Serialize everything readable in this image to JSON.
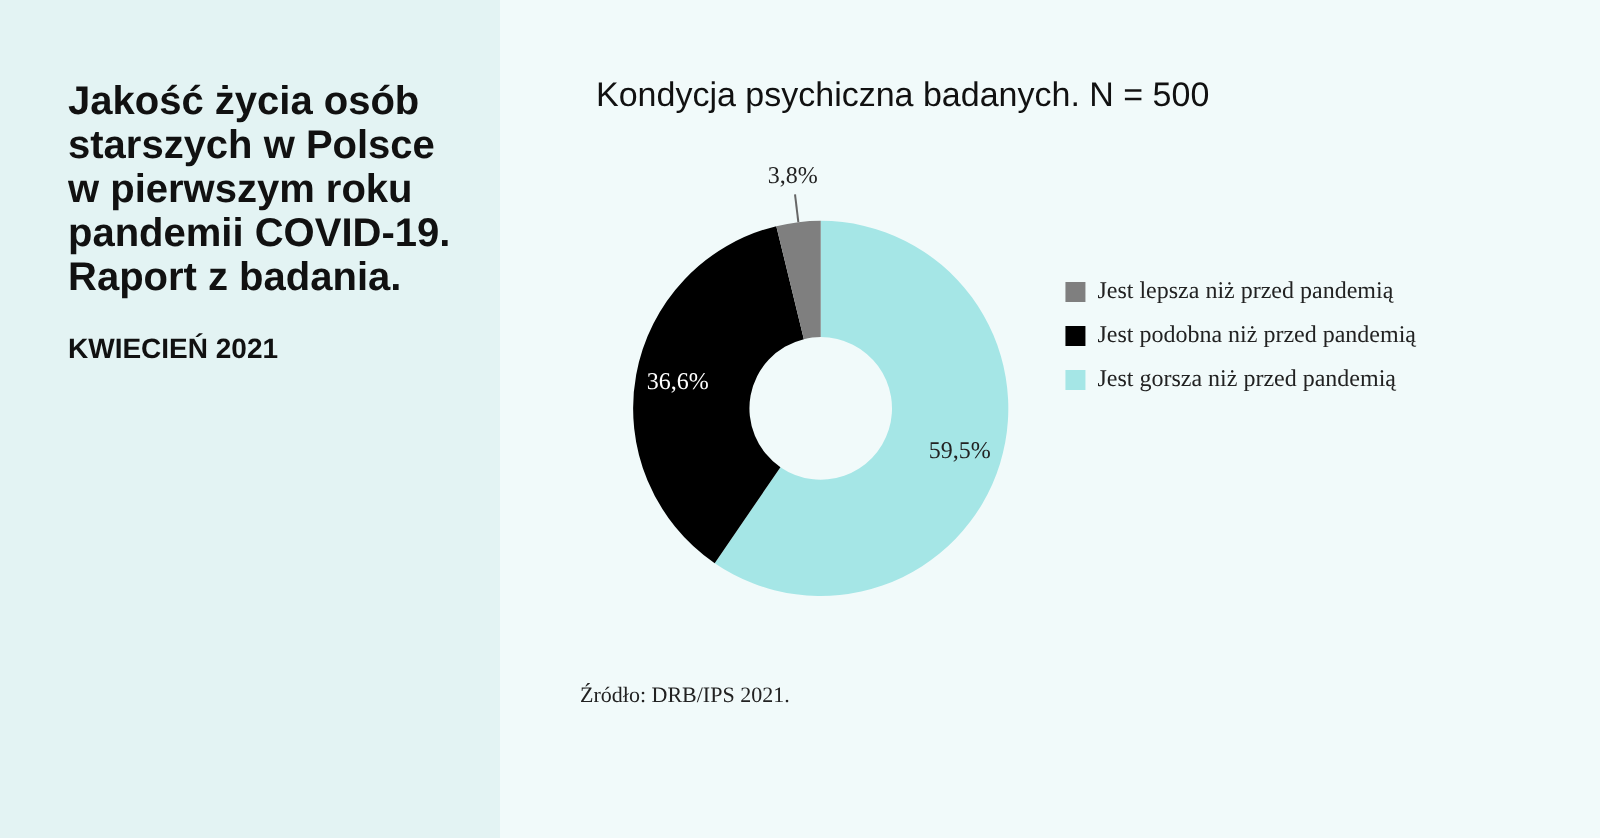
{
  "chart_data": {
    "type": "donut",
    "title": "Kondycja psychiczna badanych. N = 500",
    "categories": [
      "Jest gorsza niż przed pandemią",
      "Jest podobna niż przed pandemią",
      "Jest lepsza niż przed pandemią"
    ],
    "values": [
      59.5,
      36.6,
      3.8
    ],
    "colors": [
      "#a5e6e6",
      "#000000",
      "#7f7f7f"
    ],
    "value_labels": [
      "59,5%",
      "36,6%",
      "3,8%"
    ],
    "legend": "right",
    "annotations": [
      "Jakość życia osób starszych w Polsce w pierwszym roku pandemii COVID-19. Raport z badania.",
      "KWIECIEŃ 2021",
      "Źródło: DRB/IPS 2021."
    ]
  }
}
